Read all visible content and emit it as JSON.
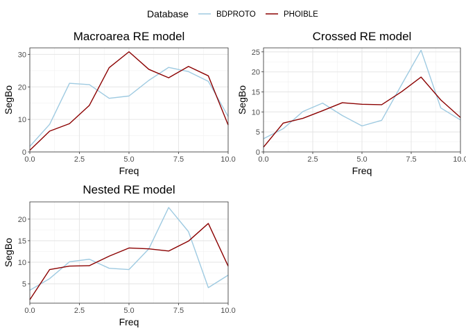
{
  "legend": {
    "title": "Database",
    "entries": [
      {
        "label": "BDPROTO",
        "color": "#9ecae1"
      },
      {
        "label": "PHOIBLE",
        "color": "#8b0000"
      }
    ],
    "position": "top"
  },
  "chart_data": [
    {
      "type": "line",
      "title": "Macroarea RE model",
      "xlabel": "Freq",
      "ylabel": "SegBo",
      "xlim": [
        0,
        10
      ],
      "ylim": [
        0,
        32
      ],
      "xticks": [
        0,
        2.5,
        5,
        7.5,
        10
      ],
      "xtick_labels": [
        "0.0",
        "2.5",
        "5.0",
        "7.5",
        "10.0"
      ],
      "yticks": [
        0,
        10,
        20,
        30
      ],
      "ytick_labels": [
        "0",
        "10",
        "20",
        "30"
      ],
      "grid": true,
      "x": [
        0,
        1,
        2,
        3,
        4,
        5,
        6,
        7,
        8,
        9,
        10
      ],
      "series": [
        {
          "name": "BDPROTO",
          "color": "#9ecae1",
          "values": [
            1.7,
            8.5,
            21.1,
            20.7,
            16.5,
            17.2,
            22.0,
            26.0,
            24.7,
            21.7,
            10.9
          ]
        },
        {
          "name": "PHOIBLE",
          "color": "#8b0000",
          "values": [
            0.5,
            6.4,
            8.7,
            14.3,
            25.9,
            30.8,
            25.4,
            22.8,
            26.3,
            23.4,
            8.3
          ]
        }
      ]
    },
    {
      "type": "line",
      "title": "Crossed RE model",
      "xlabel": "Freq",
      "ylabel": "SegBo",
      "xlim": [
        0,
        10
      ],
      "ylim": [
        0,
        26
      ],
      "xticks": [
        0,
        2.5,
        5,
        7.5,
        10
      ],
      "xtick_labels": [
        "0.0",
        "2.5",
        "5.0",
        "7.5",
        "10.0"
      ],
      "yticks": [
        0,
        5,
        10,
        15,
        20,
        25
      ],
      "ytick_labels": [
        "0",
        "5",
        "10",
        "15",
        "20",
        "25"
      ],
      "grid": true,
      "x": [
        0,
        1,
        2,
        3,
        4,
        5,
        6,
        7,
        8,
        9,
        10
      ],
      "series": [
        {
          "name": "BDPROTO",
          "color": "#9ecae1",
          "values": [
            3.3,
            5.8,
            10.1,
            12.2,
            9.1,
            6.5,
            7.9,
            16.7,
            25.4,
            11.0,
            8.0
          ]
        },
        {
          "name": "PHOIBLE",
          "color": "#8b0000",
          "values": [
            1.2,
            7.2,
            8.4,
            10.3,
            12.3,
            11.9,
            11.8,
            15.0,
            18.7,
            13.0,
            8.6
          ]
        }
      ]
    },
    {
      "type": "line",
      "title": "Nested RE model",
      "xlabel": "Freq",
      "ylabel": "SegBo",
      "xlim": [
        0,
        10
      ],
      "ylim": [
        0.5,
        24
      ],
      "xticks": [
        0,
        2.5,
        5,
        7.5,
        10
      ],
      "xtick_labels": [
        "0.0",
        "2.5",
        "5.0",
        "7.5",
        "10.0"
      ],
      "yticks": [
        5,
        10,
        15,
        20
      ],
      "ytick_labels": [
        "5",
        "10",
        "15",
        "20"
      ],
      "grid": true,
      "x": [
        0,
        1,
        2,
        3,
        4,
        5,
        6,
        7,
        8,
        9,
        10
      ],
      "series": [
        {
          "name": "BDPROTO",
          "color": "#9ecae1",
          "values": [
            3.5,
            6.2,
            10.1,
            10.7,
            8.6,
            8.3,
            13.1,
            22.7,
            17.1,
            4.1,
            7.0
          ]
        },
        {
          "name": "PHOIBLE",
          "color": "#8b0000",
          "values": [
            1.3,
            8.3,
            9.1,
            9.2,
            11.4,
            13.3,
            13.1,
            12.6,
            14.9,
            19.0,
            9.1
          ]
        }
      ]
    }
  ]
}
